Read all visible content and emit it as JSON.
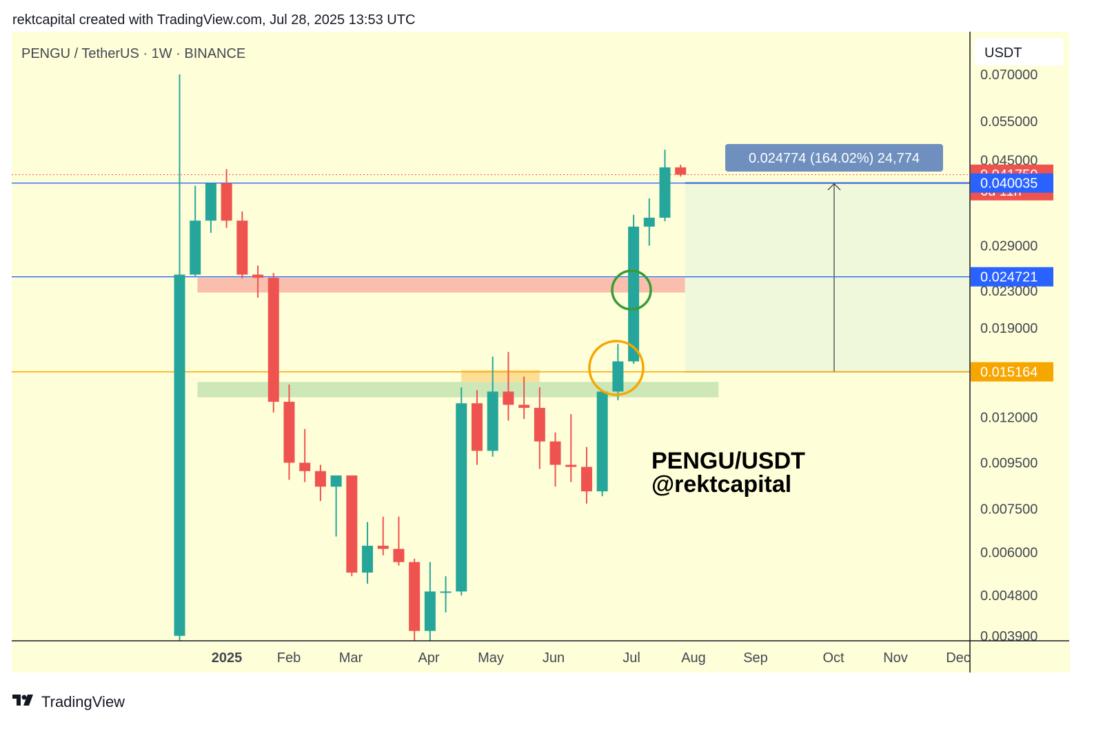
{
  "header": {
    "attribution": "rektcapital created with TradingView.com, Jul 28, 2025 13:53 UTC"
  },
  "footer": {
    "brand": "TradingView",
    "logo_icon": "tradingview-logo-icon"
  },
  "symbol_line": "PENGU / TetherUS · 1W · BINANCE",
  "currency_label": "USDT",
  "watermark": {
    "line1": "PENGU/USDT",
    "line2": "@rektcapital"
  },
  "measure_label": "0.024774 (164.02%) 24,774",
  "colors": {
    "background": "#fefed8",
    "up": "#26a69a",
    "down": "#ef5350",
    "resistance_zone": "#f8b3a4",
    "support_zone": "#c5e3b0",
    "minor_zone": "#fbd98a",
    "blue_line": "#2962ff",
    "orange_line": "#f7a600",
    "target_box": "#eef7dc"
  },
  "chart_data": {
    "type": "candlestick",
    "timeframe": "1W",
    "y_scale": "log",
    "x_labels": [
      "2025",
      "Feb",
      "Mar",
      "Apr",
      "May",
      "Jun",
      "Jul",
      "Aug",
      "Sep",
      "Oct",
      "Nov",
      "Dec"
    ],
    "y_ticks": [
      "0.070000",
      "0.055000",
      "0.045000",
      "0.029000",
      "0.023000",
      "0.019000",
      "0.012000",
      "0.009500",
      "0.007500",
      "0.006000",
      "0.004800",
      "0.003900"
    ],
    "price_labels": [
      {
        "value": "0.041750",
        "sub": "6d 11h",
        "color": "#ef5350"
      },
      {
        "value": "0.040035",
        "color": "#2962ff"
      },
      {
        "value": "0.024721",
        "color": "#2962ff"
      },
      {
        "value": "0.015164",
        "color": "#f7a600"
      }
    ],
    "horizontal_levels": [
      {
        "price": 0.040035,
        "color": "#2962ff"
      },
      {
        "price": 0.024721,
        "color": "#2962ff"
      },
      {
        "price": 0.015164,
        "color": "#f7a600"
      }
    ],
    "zones": [
      {
        "from": 0.0228,
        "to": 0.0246,
        "x_start": "2024-12-24",
        "x_end": "2025-07-30",
        "color": "#f8b3a4"
      },
      {
        "from": 0.0133,
        "to": 0.0144,
        "x_start": "2024-12-24",
        "x_end": "2025-08-14",
        "color": "#c5e3b0"
      },
      {
        "from": 0.0144,
        "to": 0.0153,
        "x_start": "2025-04-21",
        "x_end": "2025-05-26",
        "color": "#fbd98a"
      }
    ],
    "candles": [
      {
        "date": "2024-12-16",
        "o": 0.0039,
        "h": 0.07,
        "l": 0.0036,
        "c": 0.025
      },
      {
        "date": "2024-12-23",
        "o": 0.025,
        "h": 0.0395,
        "l": 0.0248,
        "c": 0.033
      },
      {
        "date": "2024-12-30",
        "o": 0.033,
        "h": 0.0398,
        "l": 0.031,
        "c": 0.04
      },
      {
        "date": "2025-01-06",
        "o": 0.04,
        "h": 0.043,
        "l": 0.0318,
        "c": 0.033
      },
      {
        "date": "2025-01-13",
        "o": 0.033,
        "h": 0.0346,
        "l": 0.0245,
        "c": 0.025
      },
      {
        "date": "2025-01-20",
        "o": 0.025,
        "h": 0.0262,
        "l": 0.0222,
        "c": 0.0246
      },
      {
        "date": "2025-01-27",
        "o": 0.0246,
        "h": 0.0252,
        "l": 0.0123,
        "c": 0.013
      },
      {
        "date": "2025-02-03",
        "o": 0.013,
        "h": 0.0142,
        "l": 0.0087,
        "c": 0.0095
      },
      {
        "date": "2025-02-10",
        "o": 0.0095,
        "h": 0.0113,
        "l": 0.0086,
        "c": 0.0091
      },
      {
        "date": "2025-02-17",
        "o": 0.0091,
        "h": 0.0094,
        "l": 0.0078,
        "c": 0.0084
      },
      {
        "date": "2025-02-24",
        "o": 0.0084,
        "h": 0.0089,
        "l": 0.0065,
        "c": 0.0089
      },
      {
        "date": "2025-03-03",
        "o": 0.0089,
        "h": 0.0089,
        "l": 0.0053,
        "c": 0.0054
      },
      {
        "date": "2025-03-10",
        "o": 0.0054,
        "h": 0.007,
        "l": 0.0051,
        "c": 0.0062
      },
      {
        "date": "2025-03-17",
        "o": 0.0062,
        "h": 0.0072,
        "l": 0.0059,
        "c": 0.0061
      },
      {
        "date": "2025-03-24",
        "o": 0.0061,
        "h": 0.0072,
        "l": 0.0056,
        "c": 0.0057
      },
      {
        "date": "2025-03-31",
        "o": 0.0057,
        "h": 0.0058,
        "l": 0.0038,
        "c": 0.004
      },
      {
        "date": "2025-04-07",
        "o": 0.004,
        "h": 0.0057,
        "l": 0.0038,
        "c": 0.0049
      },
      {
        "date": "2025-04-14",
        "o": 0.0049,
        "h": 0.0053,
        "l": 0.0044,
        "c": 0.0049
      },
      {
        "date": "2025-04-21",
        "o": 0.0049,
        "h": 0.014,
        "l": 0.0048,
        "c": 0.0129
      },
      {
        "date": "2025-04-28",
        "o": 0.0129,
        "h": 0.0138,
        "l": 0.0094,
        "c": 0.0101
      },
      {
        "date": "2025-05-05",
        "o": 0.0101,
        "h": 0.0164,
        "l": 0.0098,
        "c": 0.0137
      },
      {
        "date": "2025-05-12",
        "o": 0.0137,
        "h": 0.0168,
        "l": 0.0118,
        "c": 0.0128
      },
      {
        "date": "2025-05-19",
        "o": 0.0128,
        "h": 0.0148,
        "l": 0.0119,
        "c": 0.0126
      },
      {
        "date": "2025-05-26",
        "o": 0.0126,
        "h": 0.014,
        "l": 0.0092,
        "c": 0.0106
      },
      {
        "date": "2025-06-02",
        "o": 0.0106,
        "h": 0.0111,
        "l": 0.0084,
        "c": 0.0094
      },
      {
        "date": "2025-06-09",
        "o": 0.0094,
        "h": 0.0122,
        "l": 0.0086,
        "c": 0.0093
      },
      {
        "date": "2025-06-16",
        "o": 0.0093,
        "h": 0.0103,
        "l": 0.0077,
        "c": 0.0082
      },
      {
        "date": "2025-06-23",
        "o": 0.0082,
        "h": 0.0137,
        "l": 0.008,
        "c": 0.0137
      },
      {
        "date": "2025-06-30",
        "o": 0.0137,
        "h": 0.0175,
        "l": 0.0131,
        "c": 0.016
      },
      {
        "date": "2025-07-07",
        "o": 0.016,
        "h": 0.034,
        "l": 0.0158,
        "c": 0.032
      },
      {
        "date": "2025-07-14",
        "o": 0.032,
        "h": 0.037,
        "l": 0.029,
        "c": 0.0335
      },
      {
        "date": "2025-07-21",
        "o": 0.0335,
        "h": 0.0475,
        "l": 0.0329,
        "c": 0.0434
      },
      {
        "date": "2025-07-28",
        "o": 0.0434,
        "h": 0.044,
        "l": 0.0414,
        "c": 0.0418
      }
    ]
  }
}
